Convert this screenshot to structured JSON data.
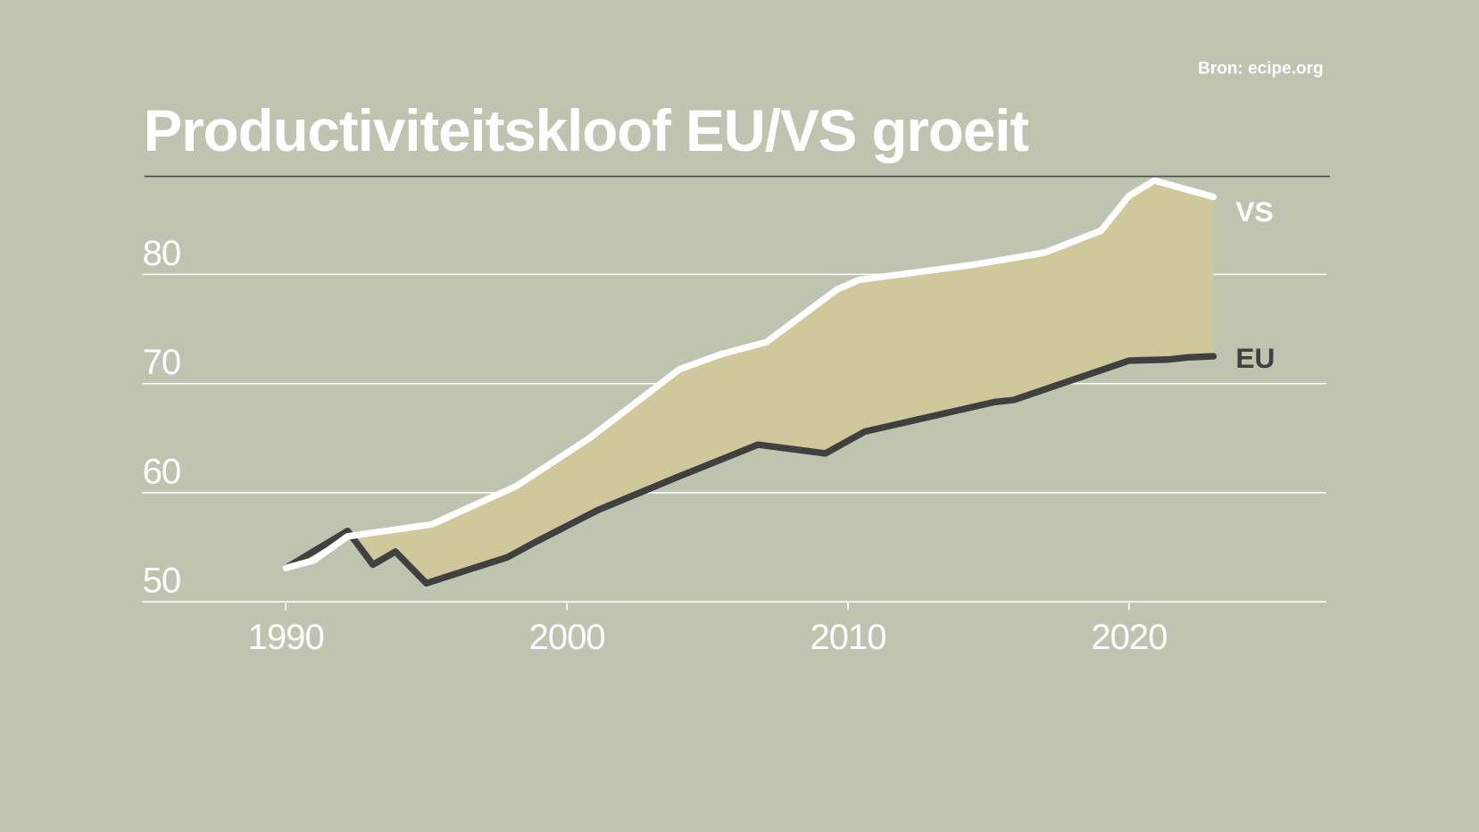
{
  "chart_data": {
    "type": "line",
    "title": "Productiviteitskloof EU/VS groeit",
    "source": "Bron: ecipe.org",
    "xlabel": "",
    "ylabel": "",
    "xlim": [
      1985,
      2027
    ],
    "ylim": [
      50,
      90
    ],
    "x_ticks": [
      "1990",
      "2000",
      "2010",
      "2020"
    ],
    "y_ticks": [
      "50",
      "60",
      "70",
      "80"
    ],
    "grid": true,
    "gap_fill_color": "#d0c79a",
    "background_color": "#bfc4b1",
    "series": [
      {
        "name": "VS",
        "color": "#ffffff",
        "points": [
          [
            1990,
            53.1
          ],
          [
            1991,
            53.8
          ],
          [
            1992.2,
            56.0
          ],
          [
            1995.2,
            57.1
          ],
          [
            1998.2,
            60.6
          ],
          [
            2000.8,
            65.0
          ],
          [
            2004,
            71.3
          ],
          [
            2005.5,
            72.7
          ],
          [
            2007.1,
            73.8
          ],
          [
            2009.6,
            78.6
          ],
          [
            2010.4,
            79.5
          ],
          [
            2014.5,
            80.9
          ],
          [
            2017,
            82.0
          ],
          [
            2019,
            84.0
          ],
          [
            2020,
            87.2
          ],
          [
            2020.9,
            88.6
          ],
          [
            2023,
            87.1
          ]
        ]
      },
      {
        "name": "EU",
        "color": "#404040",
        "points": [
          [
            1990,
            53.1
          ],
          [
            1992.2,
            56.5
          ],
          [
            1993.1,
            53.4
          ],
          [
            1993.9,
            54.6
          ],
          [
            1995,
            51.7
          ],
          [
            1997.9,
            54.1
          ],
          [
            1998.9,
            55.5
          ],
          [
            2001.1,
            58.4
          ],
          [
            2004,
            61.5
          ],
          [
            2006.8,
            64.4
          ],
          [
            2009.2,
            63.6
          ],
          [
            2010.6,
            65.6
          ],
          [
            2015.2,
            68.3
          ],
          [
            2015.9,
            68.5
          ],
          [
            2020,
            72.1
          ],
          [
            2021.4,
            72.2
          ],
          [
            2022.1,
            72.4
          ],
          [
            2023,
            72.5
          ]
        ]
      }
    ]
  }
}
